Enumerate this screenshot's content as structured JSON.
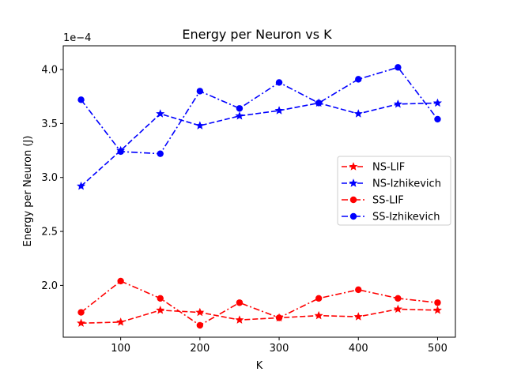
{
  "chart_data": {
    "type": "line",
    "title": "Energy per Neuron vs K",
    "xlabel": "K",
    "ylabel": "Energy per Neuron (J)",
    "y_offset_label": "1e−4",
    "xlim": [
      27.5,
      522.5
    ],
    "ylim": [
      1.52,
      4.22
    ],
    "xticks": [
      100,
      200,
      300,
      400,
      500
    ],
    "yticks": [
      2.0,
      2.5,
      3.0,
      3.5,
      4.0
    ],
    "ytick_labels": [
      "2.0",
      "2.5",
      "3.0",
      "3.5",
      "4.0"
    ],
    "grid": false,
    "legend_position": "center-right",
    "x": [
      50,
      100,
      150,
      200,
      250,
      300,
      350,
      400,
      450,
      500
    ],
    "series": [
      {
        "name": "NS-LIF",
        "color": "#ff0000",
        "marker": "star",
        "linestyle": "dashed",
        "values": [
          1.65,
          1.66,
          1.77,
          1.75,
          1.68,
          1.7,
          1.72,
          1.71,
          1.78,
          1.77
        ]
      },
      {
        "name": "NS-Izhikevich",
        "color": "#0000ff",
        "marker": "star",
        "linestyle": "dashed",
        "values": [
          2.92,
          3.25,
          3.59,
          3.48,
          3.57,
          3.62,
          3.69,
          3.59,
          3.68,
          3.69
        ]
      },
      {
        "name": "SS-LIF",
        "color": "#ff0000",
        "marker": "circle",
        "linestyle": "dashdot",
        "values": [
          1.75,
          2.04,
          1.88,
          1.63,
          1.84,
          1.7,
          1.88,
          1.96,
          1.88,
          1.84
        ]
      },
      {
        "name": "SS-Izhikevich",
        "color": "#0000ff",
        "marker": "circle",
        "linestyle": "dashdot",
        "values": [
          3.72,
          3.24,
          3.22,
          3.8,
          3.64,
          3.88,
          3.69,
          3.91,
          4.02,
          3.54
        ]
      }
    ]
  }
}
